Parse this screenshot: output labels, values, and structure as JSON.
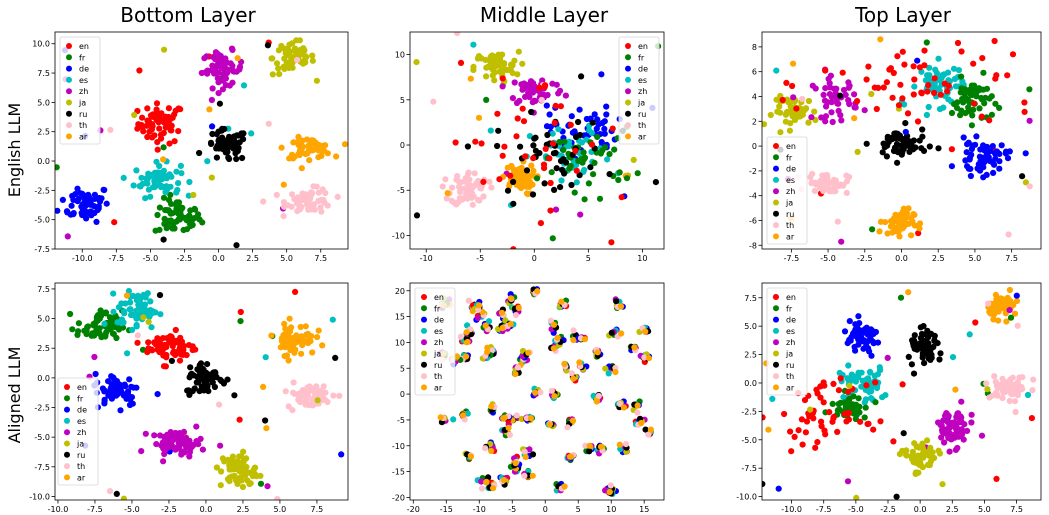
{
  "column_titles": [
    "Bottom Layer",
    "Middle Layer",
    "Top Layer"
  ],
  "row_labels": [
    "English LLM",
    "Aligned LLM"
  ],
  "languages": [
    "en",
    "fr",
    "de",
    "es",
    "zh",
    "ja",
    "ru",
    "th",
    "ar"
  ],
  "colors": {
    "en": "#ff0000",
    "fr": "#008000",
    "de": "#0000ff",
    "es": "#00bfbf",
    "zh": "#bf00bf",
    "ja": "#bfbf00",
    "ru": "#000000",
    "th": "#ffc0cb",
    "ar": "#ffa500"
  },
  "chart_data": [
    {
      "type": "scatter",
      "title": "Bottom Layer",
      "row": "English LLM",
      "legend": "upper-left",
      "xlim": [
        -12,
        9.5
      ],
      "ylim": [
        -7.5,
        11
      ],
      "xticks": [
        "-10.0",
        "-7.5",
        "-5.0",
        "-2.5",
        "0.0",
        "2.5",
        "5.0",
        "7.5"
      ],
      "yticks": [
        "-7.5",
        "-5.0",
        "-2.5",
        "0.0",
        "2.5",
        "5.0",
        "7.5",
        "10.0"
      ],
      "clusters": [
        {
          "lang": "en",
          "center": [
            -4.2,
            3.2
          ],
          "spread": [
            1.0,
            1.0
          ],
          "n": 60
        },
        {
          "lang": "fr",
          "center": [
            -3.0,
            -4.8
          ],
          "spread": [
            1.0,
            0.9
          ],
          "n": 60
        },
        {
          "lang": "de",
          "center": [
            -9.8,
            -3.6
          ],
          "spread": [
            1.1,
            0.9
          ],
          "n": 60
        },
        {
          "lang": "es",
          "center": [
            -4.5,
            -1.6
          ],
          "spread": [
            1.0,
            0.8
          ],
          "n": 60
        },
        {
          "lang": "zh",
          "center": [
            0.3,
            7.8
          ],
          "spread": [
            0.9,
            0.9
          ],
          "n": 60
        },
        {
          "lang": "ja",
          "center": [
            5.5,
            8.8
          ],
          "spread": [
            0.9,
            0.9
          ],
          "n": 60
        },
        {
          "lang": "ru",
          "center": [
            0.6,
            1.3
          ],
          "spread": [
            0.9,
            0.8
          ],
          "n": 60
        },
        {
          "lang": "th",
          "center": [
            6.7,
            -3.4
          ],
          "spread": [
            1.0,
            0.6
          ],
          "n": 60
        },
        {
          "lang": "ar",
          "center": [
            6.6,
            1.1
          ],
          "spread": [
            1.0,
            0.5
          ],
          "n": 60
        }
      ]
    },
    {
      "type": "scatter",
      "title": "Middle Layer",
      "row": "English LLM",
      "legend": "upper-right",
      "xlim": [
        -11.5,
        12
      ],
      "ylim": [
        -11.5,
        12.5
      ],
      "xticks": [
        "-10",
        "-5",
        "0",
        "5",
        "10"
      ],
      "yticks": [
        "-10",
        "-5",
        "0",
        "5",
        "10"
      ],
      "clusters": [
        {
          "lang": "ja",
          "center": [
            -3.5,
            8.6
          ],
          "spread": [
            1.2,
            1.0
          ],
          "n": 55
        },
        {
          "lang": "zh",
          "center": [
            0.2,
            6.0
          ],
          "spread": [
            1.5,
            1.0
          ],
          "n": 50
        },
        {
          "lang": "th",
          "center": [
            -6.0,
            -4.8
          ],
          "spread": [
            1.0,
            1.1
          ],
          "n": 60
        },
        {
          "lang": "ar",
          "center": [
            -1.5,
            -3.8
          ],
          "spread": [
            0.9,
            1.0
          ],
          "n": 60
        },
        {
          "lang": "de",
          "center": [
            4.5,
            1.5
          ],
          "spread": [
            1.8,
            1.6
          ],
          "n": 55
        },
        {
          "lang": "es",
          "center": [
            3.5,
            -1.5
          ],
          "spread": [
            2.2,
            2.0
          ],
          "n": 45
        },
        {
          "lang": "fr",
          "center": [
            5.0,
            -1.5
          ],
          "spread": [
            2.5,
            2.0
          ],
          "n": 40
        },
        {
          "lang": "ru",
          "center": [
            1.5,
            -1.0
          ],
          "spread": [
            3.0,
            2.5
          ],
          "n": 45
        },
        {
          "lang": "en",
          "center": [
            0.0,
            0.5
          ],
          "spread": [
            5.0,
            4.5
          ],
          "n": 35
        }
      ]
    },
    {
      "type": "scatter",
      "title": "Top Layer",
      "row": "English LLM",
      "legend": "lower-left",
      "xlim": [
        -9.5,
        9.5
      ],
      "ylim": [
        -8.3,
        9.2
      ],
      "xticks": [
        "-7.5",
        "-5.0",
        "-2.5",
        "0.0",
        "2.5",
        "5.0",
        "7.5"
      ],
      "yticks": [
        "-8",
        "-6",
        "-4",
        "-2",
        "0",
        "2",
        "4",
        "6",
        "8"
      ],
      "clusters": [
        {
          "lang": "ja",
          "center": [
            -7.2,
            2.8
          ],
          "spread": [
            0.9,
            0.7
          ],
          "n": 50
        },
        {
          "lang": "zh",
          "center": [
            -4.5,
            3.8
          ],
          "spread": [
            0.9,
            1.0
          ],
          "n": 45
        },
        {
          "lang": "es",
          "center": [
            2.7,
            5.0
          ],
          "spread": [
            0.9,
            1.0
          ],
          "n": 55
        },
        {
          "lang": "fr",
          "center": [
            4.8,
            3.7
          ],
          "spread": [
            0.8,
            1.0
          ],
          "n": 55
        },
        {
          "lang": "en",
          "center": [
            2.0,
            5.0
          ],
          "spread": [
            4.5,
            2.5
          ],
          "n": 60
        },
        {
          "lang": "ru",
          "center": [
            0.0,
            0.1
          ],
          "spread": [
            1.0,
            0.8
          ],
          "n": 60
        },
        {
          "lang": "de",
          "center": [
            5.5,
            -1.0
          ],
          "spread": [
            1.0,
            0.8
          ],
          "n": 55
        },
        {
          "lang": "th",
          "center": [
            -5.0,
            -3.0
          ],
          "spread": [
            0.8,
            0.5
          ],
          "n": 55
        },
        {
          "lang": "ar",
          "center": [
            -0.2,
            -6.1
          ],
          "spread": [
            0.6,
            0.6
          ],
          "n": 55
        }
      ]
    },
    {
      "type": "scatter",
      "title": "Bottom Layer",
      "row": "Aligned LLM",
      "legend": "center-left",
      "xlim": [
        -10.2,
        9.6
      ],
      "ylim": [
        -10.3,
        8
      ],
      "xticks": [
        "-10.0",
        "-7.5",
        "-5.0",
        "-2.5",
        "0.0",
        "2.5",
        "5.0",
        "7.5"
      ],
      "yticks": [
        "-10.0",
        "-7.5",
        "-5.0",
        "-2.5",
        "0.0",
        "2.5",
        "5.0",
        "7.5"
      ],
      "clusters": [
        {
          "lang": "fr",
          "center": [
            -7.2,
            4.3
          ],
          "spread": [
            0.9,
            0.8
          ],
          "n": 60
        },
        {
          "lang": "es",
          "center": [
            -4.6,
            5.7
          ],
          "spread": [
            0.8,
            0.9
          ],
          "n": 60
        },
        {
          "lang": "en",
          "center": [
            -2.4,
            2.6
          ],
          "spread": [
            1.0,
            0.8
          ],
          "n": 60
        },
        {
          "lang": "de",
          "center": [
            -6.0,
            -1.0
          ],
          "spread": [
            0.9,
            0.8
          ],
          "n": 60
        },
        {
          "lang": "ru",
          "center": [
            0.0,
            0.0
          ],
          "spread": [
            0.8,
            0.8
          ],
          "n": 60
        },
        {
          "lang": "ar",
          "center": [
            6.0,
            3.3
          ],
          "spread": [
            0.8,
            0.8
          ],
          "n": 60
        },
        {
          "lang": "th",
          "center": [
            7.0,
            -1.5
          ],
          "spread": [
            0.9,
            0.6
          ],
          "n": 60
        },
        {
          "lang": "zh",
          "center": [
            -2.0,
            -5.5
          ],
          "spread": [
            1.0,
            0.6
          ],
          "n": 60
        },
        {
          "lang": "ja",
          "center": [
            2.2,
            -7.8
          ],
          "spread": [
            0.7,
            0.9
          ],
          "n": 60
        }
      ]
    },
    {
      "type": "scatter",
      "title": "Middle Layer",
      "row": "Aligned LLM",
      "legend": "upper-left",
      "xlim": [
        -20.5,
        18
      ],
      "ylim": [
        -20.5,
        21.5
      ],
      "xticks": [
        "-20",
        "-15",
        "-10",
        "-5",
        "0",
        "5",
        "10",
        "15"
      ],
      "yticks": [
        "-20",
        "-15",
        "-10",
        "-5",
        "0",
        "5",
        "10",
        "15",
        "20"
      ],
      "groups": 70
    },
    {
      "type": "scatter",
      "title": "Top Layer",
      "row": "Aligned LLM",
      "legend": "upper-left",
      "xlim": [
        -12.3,
        9.4
      ],
      "ylim": [
        -10.3,
        8.8
      ],
      "xticks": [
        "-10.0",
        "-7.5",
        "-5.0",
        "-2.5",
        "0.0",
        "2.5",
        "5.0",
        "7.5"
      ],
      "yticks": [
        "-10.0",
        "-7.5",
        "-5.0",
        "-2.5",
        "0.0",
        "2.5",
        "5.0",
        "7.5"
      ],
      "clusters": [
        {
          "lang": "ar",
          "center": [
            6.5,
            6.8
          ],
          "spread": [
            0.7,
            0.6
          ],
          "n": 55
        },
        {
          "lang": "ru",
          "center": [
            0.5,
            3.0
          ],
          "spread": [
            0.8,
            0.9
          ],
          "n": 55
        },
        {
          "lang": "de",
          "center": [
            -4.5,
            3.9
          ],
          "spread": [
            0.9,
            0.9
          ],
          "n": 55
        },
        {
          "lang": "es",
          "center": [
            -4.5,
            -0.1
          ],
          "spread": [
            1.2,
            0.9
          ],
          "n": 55
        },
        {
          "lang": "fr",
          "center": [
            -5.5,
            -2.0
          ],
          "spread": [
            0.8,
            0.6
          ],
          "n": 50
        },
        {
          "lang": "en",
          "center": [
            -7.5,
            -2.8
          ],
          "spread": [
            2.0,
            1.6
          ],
          "n": 55
        },
        {
          "lang": "th",
          "center": [
            7.0,
            -0.4
          ],
          "spread": [
            0.9,
            0.6
          ],
          "n": 55
        },
        {
          "lang": "zh",
          "center": [
            2.5,
            -4.0
          ],
          "spread": [
            1.0,
            1.0
          ],
          "n": 55
        },
        {
          "lang": "ja",
          "center": [
            0.0,
            -6.6
          ],
          "spread": [
            0.8,
            0.9
          ],
          "n": 55
        }
      ]
    }
  ]
}
